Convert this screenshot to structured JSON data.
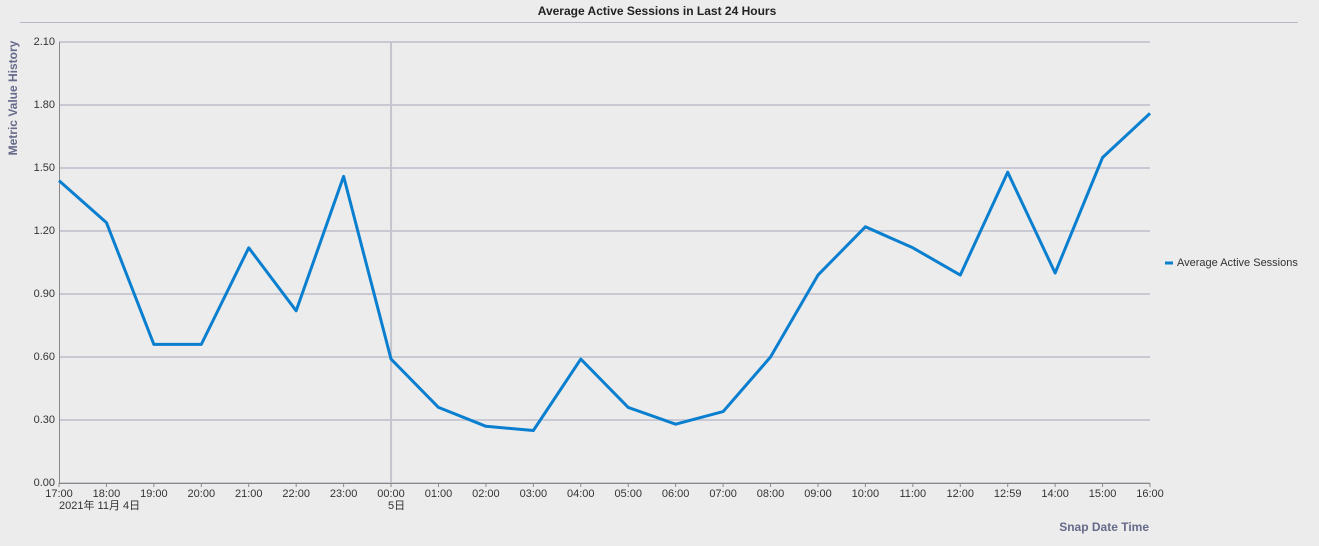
{
  "chart_data": {
    "type": "line",
    "title": "Average Active Sessions in Last 24 Hours",
    "x_label": "Snap Date Time",
    "y_label": "Metric Value History",
    "categories": [
      "17:00",
      "18:00",
      "19:00",
      "20:00",
      "21:00",
      "22:00",
      "23:00",
      "00:00",
      "01:00",
      "02:00",
      "03:00",
      "04:00",
      "05:00",
      "06:00",
      "07:00",
      "08:00",
      "09:00",
      "10:00",
      "11:00",
      "12:00",
      "12:59",
      "14:00",
      "15:00",
      "16:00"
    ],
    "x_sublabels": [
      "2021年 11月 4日",
      null,
      null,
      null,
      null,
      null,
      null,
      "5日",
      null,
      null,
      null,
      null,
      null,
      null,
      null,
      null,
      null,
      null,
      null,
      null,
      null,
      null,
      null,
      null
    ],
    "series": [
      {
        "name": "Average Active Sessions",
        "color": "#0a7fd0",
        "values": [
          1.44,
          1.24,
          0.66,
          0.66,
          1.12,
          0.82,
          1.46,
          0.59,
          0.36,
          0.27,
          0.25,
          0.59,
          0.36,
          0.28,
          0.34,
          0.6,
          0.99,
          1.22,
          1.12,
          0.99,
          1.48,
          1.0,
          1.55,
          1.76
        ]
      }
    ],
    "ylim": [
      0,
      2.1
    ],
    "yticks": [
      {
        "value": 0,
        "label": "0.00"
      },
      {
        "value": 0.3,
        "label": "0.30"
      },
      {
        "value": 0.6,
        "label": "0.60"
      },
      {
        "value": 0.9,
        "label": "0.90"
      },
      {
        "value": 1.2,
        "label": "1.20"
      },
      {
        "value": 1.5,
        "label": "1.50"
      },
      {
        "value": 1.8,
        "label": "1.80"
      },
      {
        "value": 2.1,
        "label": "2.10"
      }
    ],
    "grid": true,
    "legend": "right"
  }
}
